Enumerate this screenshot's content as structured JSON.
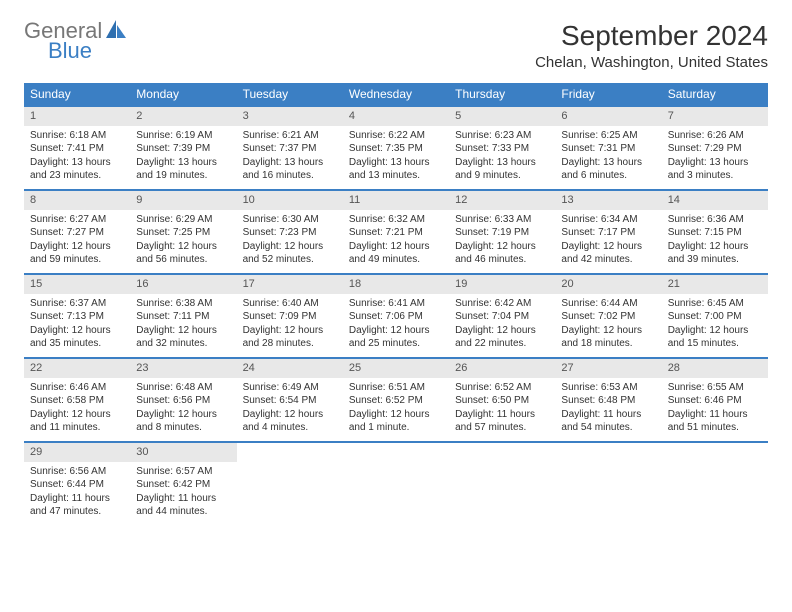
{
  "logo": {
    "general": "General",
    "blue": "Blue"
  },
  "title": "September 2024",
  "location": "Chelan, Washington, United States",
  "colors": {
    "header_bg": "#3b7fc4",
    "daynum_bg": "#e8e8e8",
    "text": "#333333"
  },
  "day_headers": [
    "Sunday",
    "Monday",
    "Tuesday",
    "Wednesday",
    "Thursday",
    "Friday",
    "Saturday"
  ],
  "weeks": [
    [
      {
        "n": "1",
        "sr": "Sunrise: 6:18 AM",
        "ss": "Sunset: 7:41 PM",
        "d1": "Daylight: 13 hours",
        "d2": "and 23 minutes."
      },
      {
        "n": "2",
        "sr": "Sunrise: 6:19 AM",
        "ss": "Sunset: 7:39 PM",
        "d1": "Daylight: 13 hours",
        "d2": "and 19 minutes."
      },
      {
        "n": "3",
        "sr": "Sunrise: 6:21 AM",
        "ss": "Sunset: 7:37 PM",
        "d1": "Daylight: 13 hours",
        "d2": "and 16 minutes."
      },
      {
        "n": "4",
        "sr": "Sunrise: 6:22 AM",
        "ss": "Sunset: 7:35 PM",
        "d1": "Daylight: 13 hours",
        "d2": "and 13 minutes."
      },
      {
        "n": "5",
        "sr": "Sunrise: 6:23 AM",
        "ss": "Sunset: 7:33 PM",
        "d1": "Daylight: 13 hours",
        "d2": "and 9 minutes."
      },
      {
        "n": "6",
        "sr": "Sunrise: 6:25 AM",
        "ss": "Sunset: 7:31 PM",
        "d1": "Daylight: 13 hours",
        "d2": "and 6 minutes."
      },
      {
        "n": "7",
        "sr": "Sunrise: 6:26 AM",
        "ss": "Sunset: 7:29 PM",
        "d1": "Daylight: 13 hours",
        "d2": "and 3 minutes."
      }
    ],
    [
      {
        "n": "8",
        "sr": "Sunrise: 6:27 AM",
        "ss": "Sunset: 7:27 PM",
        "d1": "Daylight: 12 hours",
        "d2": "and 59 minutes."
      },
      {
        "n": "9",
        "sr": "Sunrise: 6:29 AM",
        "ss": "Sunset: 7:25 PM",
        "d1": "Daylight: 12 hours",
        "d2": "and 56 minutes."
      },
      {
        "n": "10",
        "sr": "Sunrise: 6:30 AM",
        "ss": "Sunset: 7:23 PM",
        "d1": "Daylight: 12 hours",
        "d2": "and 52 minutes."
      },
      {
        "n": "11",
        "sr": "Sunrise: 6:32 AM",
        "ss": "Sunset: 7:21 PM",
        "d1": "Daylight: 12 hours",
        "d2": "and 49 minutes."
      },
      {
        "n": "12",
        "sr": "Sunrise: 6:33 AM",
        "ss": "Sunset: 7:19 PM",
        "d1": "Daylight: 12 hours",
        "d2": "and 46 minutes."
      },
      {
        "n": "13",
        "sr": "Sunrise: 6:34 AM",
        "ss": "Sunset: 7:17 PM",
        "d1": "Daylight: 12 hours",
        "d2": "and 42 minutes."
      },
      {
        "n": "14",
        "sr": "Sunrise: 6:36 AM",
        "ss": "Sunset: 7:15 PM",
        "d1": "Daylight: 12 hours",
        "d2": "and 39 minutes."
      }
    ],
    [
      {
        "n": "15",
        "sr": "Sunrise: 6:37 AM",
        "ss": "Sunset: 7:13 PM",
        "d1": "Daylight: 12 hours",
        "d2": "and 35 minutes."
      },
      {
        "n": "16",
        "sr": "Sunrise: 6:38 AM",
        "ss": "Sunset: 7:11 PM",
        "d1": "Daylight: 12 hours",
        "d2": "and 32 minutes."
      },
      {
        "n": "17",
        "sr": "Sunrise: 6:40 AM",
        "ss": "Sunset: 7:09 PM",
        "d1": "Daylight: 12 hours",
        "d2": "and 28 minutes."
      },
      {
        "n": "18",
        "sr": "Sunrise: 6:41 AM",
        "ss": "Sunset: 7:06 PM",
        "d1": "Daylight: 12 hours",
        "d2": "and 25 minutes."
      },
      {
        "n": "19",
        "sr": "Sunrise: 6:42 AM",
        "ss": "Sunset: 7:04 PM",
        "d1": "Daylight: 12 hours",
        "d2": "and 22 minutes."
      },
      {
        "n": "20",
        "sr": "Sunrise: 6:44 AM",
        "ss": "Sunset: 7:02 PM",
        "d1": "Daylight: 12 hours",
        "d2": "and 18 minutes."
      },
      {
        "n": "21",
        "sr": "Sunrise: 6:45 AM",
        "ss": "Sunset: 7:00 PM",
        "d1": "Daylight: 12 hours",
        "d2": "and 15 minutes."
      }
    ],
    [
      {
        "n": "22",
        "sr": "Sunrise: 6:46 AM",
        "ss": "Sunset: 6:58 PM",
        "d1": "Daylight: 12 hours",
        "d2": "and 11 minutes."
      },
      {
        "n": "23",
        "sr": "Sunrise: 6:48 AM",
        "ss": "Sunset: 6:56 PM",
        "d1": "Daylight: 12 hours",
        "d2": "and 8 minutes."
      },
      {
        "n": "24",
        "sr": "Sunrise: 6:49 AM",
        "ss": "Sunset: 6:54 PM",
        "d1": "Daylight: 12 hours",
        "d2": "and 4 minutes."
      },
      {
        "n": "25",
        "sr": "Sunrise: 6:51 AM",
        "ss": "Sunset: 6:52 PM",
        "d1": "Daylight: 12 hours",
        "d2": "and 1 minute."
      },
      {
        "n": "26",
        "sr": "Sunrise: 6:52 AM",
        "ss": "Sunset: 6:50 PM",
        "d1": "Daylight: 11 hours",
        "d2": "and 57 minutes."
      },
      {
        "n": "27",
        "sr": "Sunrise: 6:53 AM",
        "ss": "Sunset: 6:48 PM",
        "d1": "Daylight: 11 hours",
        "d2": "and 54 minutes."
      },
      {
        "n": "28",
        "sr": "Sunrise: 6:55 AM",
        "ss": "Sunset: 6:46 PM",
        "d1": "Daylight: 11 hours",
        "d2": "and 51 minutes."
      }
    ],
    [
      {
        "n": "29",
        "sr": "Sunrise: 6:56 AM",
        "ss": "Sunset: 6:44 PM",
        "d1": "Daylight: 11 hours",
        "d2": "and 47 minutes."
      },
      {
        "n": "30",
        "sr": "Sunrise: 6:57 AM",
        "ss": "Sunset: 6:42 PM",
        "d1": "Daylight: 11 hours",
        "d2": "and 44 minutes."
      },
      null,
      null,
      null,
      null,
      null
    ]
  ]
}
